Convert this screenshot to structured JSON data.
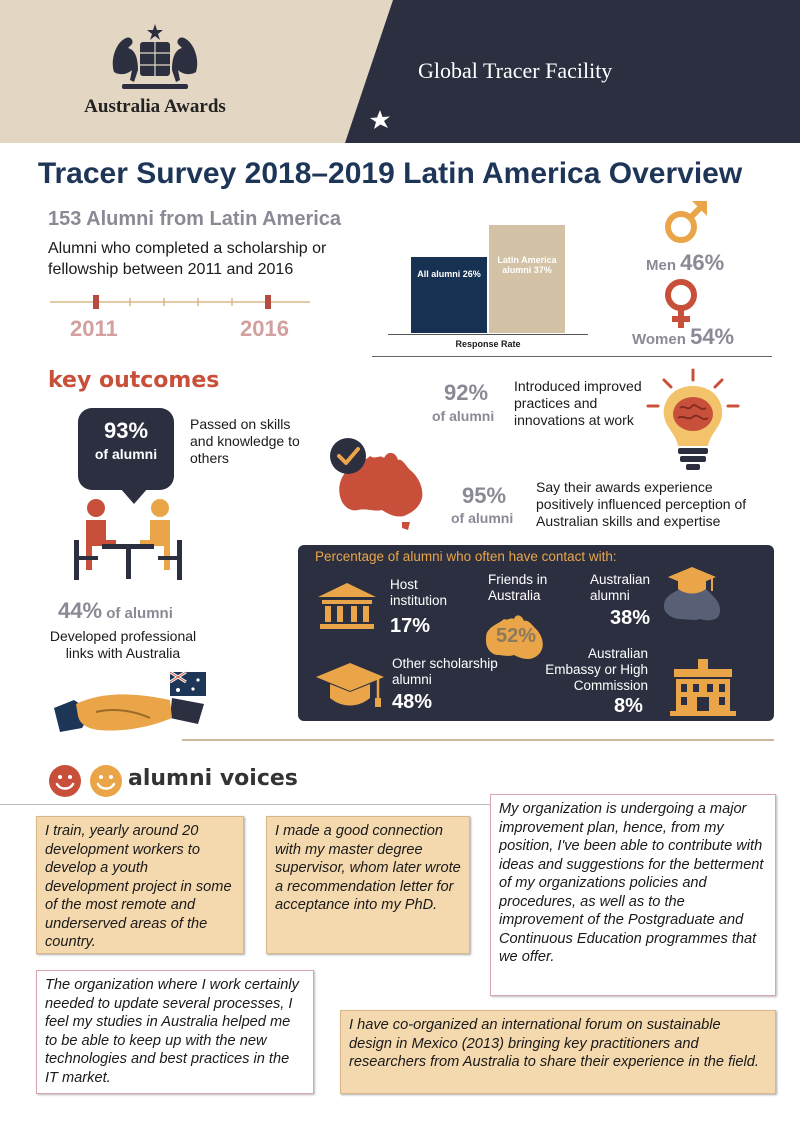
{
  "header": {
    "brand": "Australia Awards",
    "facility": "Global Tracer Facility"
  },
  "title": "Tracer Survey 2018–2019 Latin America Overview",
  "summary": {
    "count": "153 Alumni from Latin America",
    "description": "Alumni who completed a scholarship or fellowship between 2011 and 2016",
    "year_start": "2011",
    "year_end": "2016"
  },
  "chart_data": {
    "type": "bar",
    "categories": [
      "All alumni",
      "Latin America alumni"
    ],
    "values": [
      26,
      37
    ],
    "labels": [
      "All alumni 26%",
      "Latin America alumni 37%"
    ],
    "xlabel": "Response Rate",
    "colors": [
      "#163152",
      "#d3c2a6"
    ]
  },
  "gender": {
    "men_label": "Men",
    "men_pct": "46%",
    "women_label": "Women",
    "women_pct": "54%"
  },
  "key_outcomes": {
    "title": "key outcomes",
    "passed_pct": "93%",
    "passed_sub": "of alumni",
    "passed_text": "Passed on skills and knowledge to others",
    "links_pct": "44%",
    "links_sub": "of alumni",
    "links_text": "Developed professional links with Australia",
    "improved_pct": "92%",
    "improved_sub": "of alumni",
    "improved_text": "Introduced improved practices and innovations at work",
    "perception_pct": "95%",
    "perception_sub": "of alumni",
    "perception_text": "Say their awards experience positively influenced perception of Australian skills and expertise"
  },
  "contact": {
    "title": "Percentage of alumni who often have contact with:",
    "host_label": "Host institution",
    "host_value": "17%",
    "friends_label": "Friends in Australia",
    "friends_value": "52%",
    "aus_alumni_label": "Australian alumni",
    "aus_alumni_value": "38%",
    "other_label": "Other scholarship alumni",
    "other_value": "48%",
    "embassy_label": "Australian Embassy or High Commission",
    "embassy_value": "8%"
  },
  "voices": {
    "title": "alumni voices",
    "quotes": [
      "I train, yearly around 20 development workers to develop a youth development project in some of the most remote and underserved areas of the country.",
      "I made a good connection with my master degree supervisor, whom later wrote a recommendation letter for acceptance into my PhD.",
      "My organization is undergoing a major improvement plan, hence, from my position, I've been able to contribute with ideas and suggestions for the betterment of my organizations policies and procedures, as well as to the improvement of the Postgraduate and Continuous Education programmes that we offer.",
      "The organization where I work certainly needed to update several processes, I feel my studies in Australia helped me to be able to keep up with the new technologies and best practices in the IT market.",
      "I have co-organized an international forum on sustainable design in Mexico (2013) bringing key practitioners and researchers from Australia to share their experience in the field."
    ]
  }
}
